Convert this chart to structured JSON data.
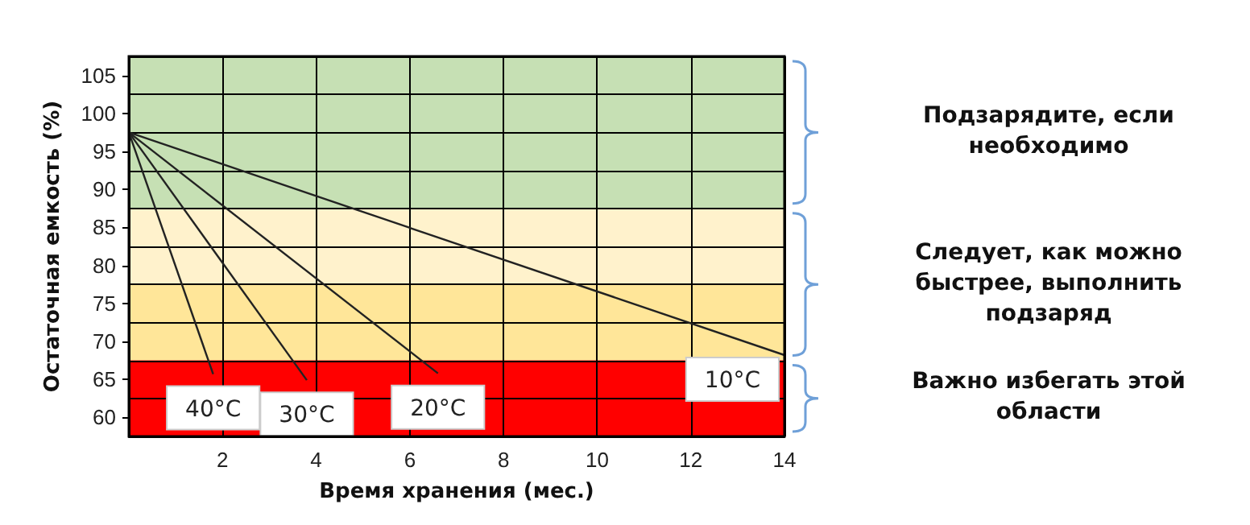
{
  "chart_data": {
    "type": "line",
    "xlabel": "Время хранения (мес.)",
    "ylabel": "Остаточная емкость (%)",
    "xlim": [
      0,
      14
    ],
    "xticks": [
      2,
      4,
      6,
      8,
      10,
      12,
      14
    ],
    "ylim": [
      57.5,
      107.5
    ],
    "yticks": [
      {
        "value": 57.5,
        "label": null
      },
      60,
      {
        "value": 62.5,
        "label": null
      },
      65,
      {
        "value": 67.5,
        "label": null
      },
      70,
      {
        "value": 72.5,
        "label": null
      },
      75,
      {
        "value": 77.5,
        "label": null
      },
      80,
      {
        "value": 82.5,
        "label": null
      },
      85,
      {
        "value": 87.5,
        "label": null
      },
      90,
      {
        "value": 92.5,
        "label": null
      },
      95,
      {
        "value": 97.5,
        "label": null
      },
      100,
      {
        "value": 102.5,
        "label": null
      },
      105,
      {
        "value": 107.5,
        "label": null
      }
    ],
    "grid": true,
    "marker": "none",
    "line_style": "solid",
    "series": [
      {
        "name": "10°C",
        "color": "#222222",
        "x": [
          0,
          14
        ],
        "values": [
          97.5,
          68.2
        ]
      },
      {
        "name": "20°C",
        "color": "#222222",
        "x": [
          0,
          6.6
        ],
        "values": [
          97.5,
          65.8
        ]
      },
      {
        "name": "30°C",
        "color": "#222222",
        "x": [
          0,
          3.8
        ],
        "values": [
          97.5,
          64.9
        ]
      },
      {
        "name": "40°C",
        "color": "#222222",
        "x": [
          0,
          1.8
        ],
        "values": [
          97.5,
          65.7
        ]
      }
    ],
    "bands": [
      {
        "axis": "y",
        "from": 87.5,
        "to": 107.5,
        "color": "#c6e0b4"
      },
      {
        "axis": "y",
        "from": 67.5,
        "to": 87.5,
        "color": "#fff2cc"
      },
      {
        "axis": "y",
        "from": 67.5,
        "to": 77.5,
        "color": "#ffe699"
      },
      {
        "axis": "y",
        "from": 57.5,
        "to": 67.5,
        "color": "#ff0000"
      }
    ],
    "annotations": [
      "Подзарядите, если необходимо",
      "Следует, как можно быстрее, выполнить подзаряд",
      "Важно избегать этой области"
    ]
  }
}
